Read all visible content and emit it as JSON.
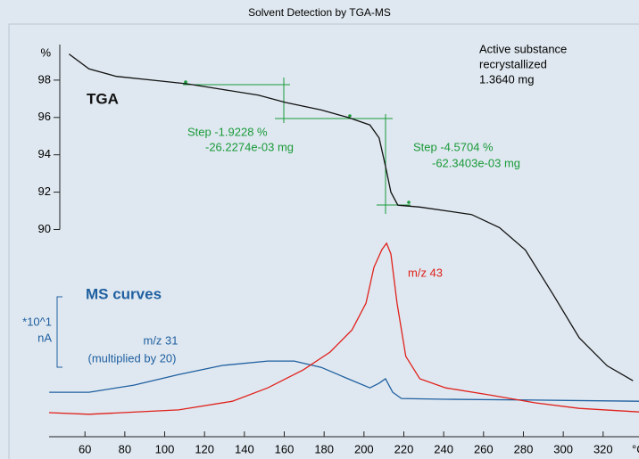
{
  "chart_data": {
    "type": "line",
    "title": "Solvent Detection by TGA-MS",
    "x_label": "°C",
    "y_label": "%",
    "y2_label": "*10^1",
    "y2_unit": "nA",
    "xlim": [
      42,
      338
    ],
    "xticks": [
      60,
      80,
      100,
      120,
      140,
      160,
      180,
      200,
      220,
      240,
      260,
      280,
      300,
      320
    ],
    "ylim": [
      78.9,
      100
    ],
    "yticks": [
      90,
      92,
      94,
      96,
      98
    ],
    "y2lim": [
      0,
      100
    ],
    "series": [
      {
        "name": "TGA",
        "color": "#111111",
        "axis": "y",
        "x": [
          52,
          62,
          75.7,
          93.6,
          111.5,
          129,
          147,
          160.7,
          178.6,
          192,
          203,
          207.6,
          210.8,
          213.5,
          217,
          228,
          241,
          254,
          268,
          281,
          295,
          308,
          322,
          335
        ],
        "values": [
          99.4,
          98.6,
          98.2,
          98.0,
          97.8,
          97.5,
          97.2,
          96.8,
          96.4,
          96.0,
          95.6,
          94.9,
          93.4,
          92.0,
          91.3,
          91.2,
          91.0,
          90.8,
          90.1,
          88.9,
          86.5,
          84.2,
          82.7,
          81.9
        ]
      },
      {
        "name": "m/z 31",
        "color": "#1f5fa0",
        "axis": "y2",
        "x": [
          42.1,
          62,
          84.6,
          107,
          129,
          151.7,
          165,
          178.6,
          192,
          203,
          207.6,
          210.8,
          214.4,
          218.8,
          241,
          286,
          338
        ],
        "values": [
          11.3,
          11.3,
          13.1,
          15.8,
          18.1,
          19.2,
          19.2,
          17.6,
          14.7,
          12.4,
          13.6,
          14.7,
          11.3,
          9.7,
          9.5,
          9.3,
          9.0
        ]
      },
      {
        "name": "m/z 43",
        "color": "#e0201b",
        "axis": "y2",
        "x": [
          42,
          62,
          107,
          134,
          151.7,
          169.6,
          183,
          194,
          201,
          205,
          209,
          211.3,
          213.5,
          216.6,
          221,
          228,
          241,
          263,
          286,
          308,
          338
        ],
        "values": [
          6.1,
          5.7,
          6.8,
          9.0,
          12.4,
          17.0,
          21.5,
          27.1,
          33.9,
          43.0,
          47.5,
          49.1,
          46.4,
          33.9,
          20.4,
          14.7,
          12.4,
          10.6,
          8.6,
          7.2,
          6.3
        ]
      }
    ],
    "annotations": [
      {
        "text": "TGA",
        "color": "#000000"
      },
      {
        "text": "Active substance",
        "color": "#000000"
      },
      {
        "text": "recrystallized",
        "color": "#000000"
      },
      {
        "text": "1.3640 mg",
        "color": "#000000"
      },
      {
        "text": "Step -1.9228 %",
        "color": "#1a9a3a"
      },
      {
        "text": "-26.2274e-03 mg",
        "color": "#1a9a3a"
      },
      {
        "text": "Step -4.5704 %",
        "color": "#1a9a3a"
      },
      {
        "text": "-62.3403e-03 mg",
        "color": "#1a9a3a"
      },
      {
        "text": "m/z 43",
        "color": "#e0201b"
      },
      {
        "text": "MS curves",
        "color": "#1f5fa0"
      },
      {
        "text": "(multiplied by 20)",
        "color": "#1f5fa0"
      }
    ]
  }
}
